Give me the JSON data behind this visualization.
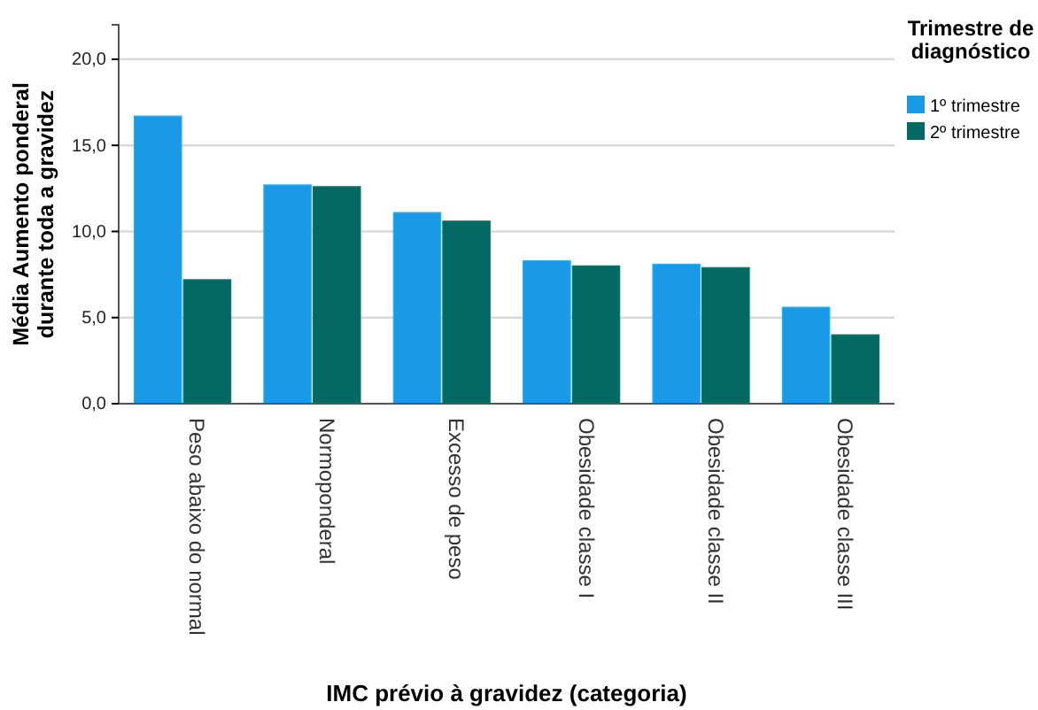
{
  "chart_data": {
    "type": "bar",
    "xlabel": "IMC prévio à gravidez (categoria)",
    "ylabel": "Média Aumento ponderal durante toda a gravidez",
    "legend_title": "Trimestre de diagnóstico",
    "categories": [
      "Peso abaixo do normal",
      "Normoponderal",
      "Excesso de peso",
      "Obesidade classe I",
      "Obesidade classe II",
      "Obesidade classe III"
    ],
    "series": [
      {
        "name": "1º trimestre",
        "color": "#1a9ae6",
        "values": [
          16.7,
          12.7,
          11.1,
          8.3,
          8.1,
          5.6
        ]
      },
      {
        "name": "2º trimestre",
        "color": "#036962",
        "values": [
          7.2,
          12.6,
          10.6,
          8.0,
          7.9,
          4.0
        ]
      }
    ],
    "ylim": [
      0,
      22
    ],
    "yticks": [
      {
        "value": 0,
        "label": "0,0"
      },
      {
        "value": 5,
        "label": "5,0"
      },
      {
        "value": 10,
        "label": "10,0"
      },
      {
        "value": 15,
        "label": "15,0"
      },
      {
        "value": 20,
        "label": "20,0"
      }
    ],
    "grid": "y",
    "legend": "right"
  }
}
